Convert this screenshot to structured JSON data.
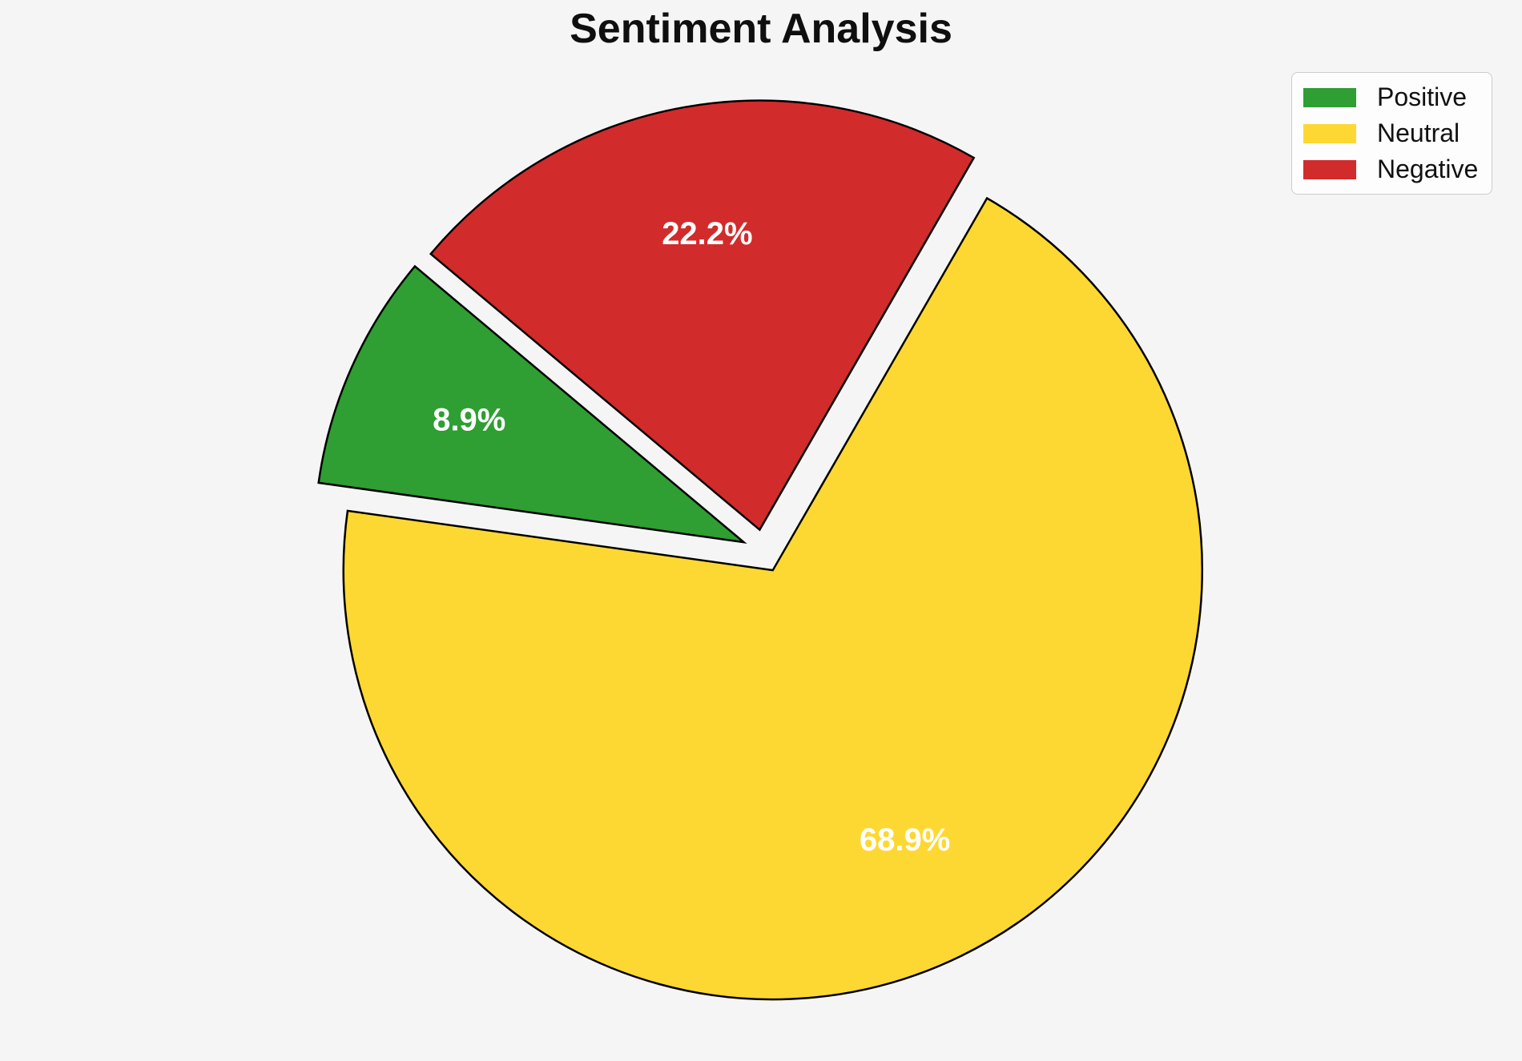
{
  "page": {
    "background_color": "#f5f5f5"
  },
  "chart_data": {
    "type": "pie",
    "title": "Sentiment Analysis",
    "labels": [
      "Positive",
      "Neutral",
      "Negative"
    ],
    "values": [
      8.9,
      68.9,
      22.2
    ],
    "colors": [
      "#2F9E33",
      "#FED832",
      "#D22B2B"
    ],
    "edge_color": "#000000",
    "value_label_format": "percent_one_decimal",
    "value_label_color": "#ffffff",
    "start_angle_deg": 140,
    "counterclockwise": true,
    "explode": 0.05,
    "pct_distance": 0.7,
    "legend_position": "upper right",
    "legend_entries": [
      "Positive",
      "Neutral",
      "Negative"
    ]
  }
}
